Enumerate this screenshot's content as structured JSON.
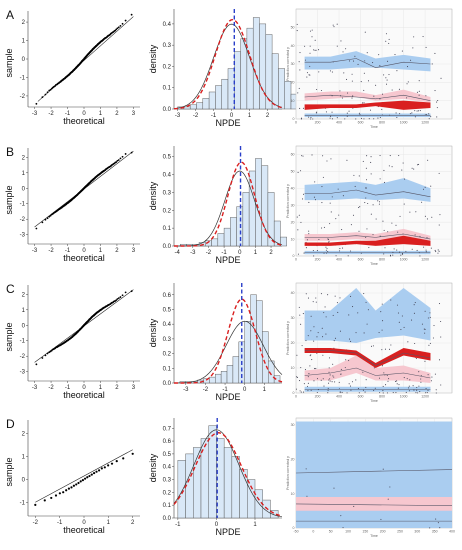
{
  "panels": [
    {
      "label": "A",
      "qq": {
        "xlabel": "theoretical",
        "ylabel": "sample",
        "xticks": [
          "-3",
          "-2",
          "-1",
          "0",
          "1",
          "2",
          "3"
        ],
        "yticks": [
          "-2",
          "-1",
          "0",
          "1",
          "2"
        ],
        "xlim": [
          -3.4,
          3.4
        ],
        "ylim": [
          -2.6,
          2.6
        ],
        "line": [
          [
            -2.8,
            -2.3
          ],
          [
            3.0,
            2.3
          ]
        ],
        "points": {
          "n": 260,
          "lo": -2.7,
          "hi": 2.4,
          "slope": 0.85,
          "wave": 0.08
        }
      },
      "hist": {
        "xlabel": "NPDE",
        "ylabel": "density",
        "xticks": [
          "-3",
          "-2",
          "-1",
          "0",
          "1",
          "2"
        ],
        "yticks": [
          "0.0",
          "0.1",
          "0.2",
          "0.3",
          "0.4"
        ],
        "xlim": [
          -3.2,
          2.8
        ],
        "ylim": [
          0,
          0.47
        ],
        "bins": {
          "start": -3.0,
          "width": 0.35,
          "values": [
            0.01,
            0.01,
            0.02,
            0.03,
            0.05,
            0.08,
            0.11,
            0.14,
            0.19,
            0.27,
            0.33,
            0.38,
            0.43,
            0.4,
            0.35,
            0.26,
            0.19,
            0.13,
            0.07,
            0.03
          ]
        },
        "normal": {
          "mean": 0.0,
          "sd": 1.0
        },
        "fit": {
          "mean": 0.05,
          "sd": 0.95
        },
        "mean_line": 0.15
      },
      "vpc": {
        "xlabel": "Time",
        "ylabel": "Prediction corrected y",
        "xticks": [
          "0",
          "200",
          "400",
          "600",
          "800",
          "1000",
          "1200"
        ],
        "yticks": [
          "0",
          "10",
          "20",
          "30",
          "40",
          "50"
        ],
        "xlim": [
          0,
          1450
        ],
        "ylim": [
          0,
          60
        ],
        "bins": [
          80,
          320,
          560,
          740,
          1000,
          1250
        ],
        "upper_band": [
          [
            27,
            34
          ],
          [
            27,
            34
          ],
          [
            28,
            37
          ],
          [
            28,
            33
          ],
          [
            27,
            35
          ],
          [
            26,
            33
          ]
        ],
        "upper_obs": [
          31,
          31,
          33,
          28,
          31,
          30
        ],
        "median_band": [
          [
            10,
            14
          ],
          [
            11,
            15
          ],
          [
            12,
            15
          ],
          [
            10,
            13
          ],
          [
            11,
            16
          ],
          [
            9,
            12
          ]
        ],
        "median_obs": [
          12,
          13,
          12,
          11,
          13,
          10
        ],
        "lower_band": [
          [
            1,
            3
          ],
          [
            1,
            3
          ],
          [
            1,
            3
          ],
          [
            1,
            3
          ],
          [
            1,
            3
          ],
          [
            1,
            3
          ]
        ],
        "lower_obs": [
          2,
          2,
          2,
          2,
          2,
          2
        ],
        "red_fill": [
          [
            5,
            8
          ],
          [
            6,
            8
          ],
          [
            6,
            8
          ],
          [
            7,
            9
          ],
          [
            5,
            10
          ],
          [
            6,
            9
          ]
        ],
        "scatter": {
          "n": 160,
          "max": 52
        }
      }
    },
    {
      "label": "B",
      "qq": {
        "xlabel": "theoretical",
        "ylabel": "sample",
        "xticks": [
          "-3",
          "-2",
          "-1",
          "0",
          "1",
          "2",
          "3"
        ],
        "yticks": [
          "-3",
          "-2",
          "-1",
          "0",
          "1",
          "2"
        ],
        "xlim": [
          -3.4,
          3.4
        ],
        "ylim": [
          -3.6,
          2.6
        ],
        "line": [
          [
            -3.0,
            -2.5
          ],
          [
            3.0,
            2.4
          ]
        ],
        "points": {
          "n": 260,
          "lo": -3.2,
          "hi": 2.3,
          "slope": 0.9,
          "wave": 0.07
        }
      },
      "hist": {
        "xlabel": "NPDE",
        "ylabel": "density",
        "xticks": [
          "-4",
          "-3",
          "-2",
          "-1",
          "0",
          "1",
          "2"
        ],
        "yticks": [
          "0.0",
          "0.1",
          "0.2",
          "0.3",
          "0.4",
          "0.5"
        ],
        "xlim": [
          -4.2,
          2.7
        ],
        "ylim": [
          0,
          0.56
        ],
        "bins": {
          "start": -3.8,
          "width": 0.4,
          "values": [
            0.01,
            0.01,
            0.01,
            0.02,
            0.03,
            0.04,
            0.07,
            0.1,
            0.16,
            0.22,
            0.3,
            0.42,
            0.49,
            0.45,
            0.3,
            0.14,
            0.05
          ]
        },
        "normal": {
          "mean": 0.0,
          "sd": 0.95
        },
        "fit": {
          "mean": 0.1,
          "sd": 0.85
        },
        "mean_line": 0.05
      },
      "vpc": {
        "xlabel": "Time",
        "ylabel": "Prediction corrected y",
        "xticks": [
          "0",
          "200",
          "400",
          "600",
          "800",
          "1000",
          "1200"
        ],
        "yticks": [
          "0",
          "10",
          "20",
          "30",
          "40",
          "50",
          "60"
        ],
        "xlim": [
          0,
          1450
        ],
        "ylim": [
          0,
          65
        ],
        "bins": [
          80,
          320,
          560,
          740,
          1000,
          1250
        ],
        "upper_band": [
          [
            33,
            42
          ],
          [
            33,
            43
          ],
          [
            34,
            44
          ],
          [
            33,
            42
          ],
          [
            34,
            46
          ],
          [
            32,
            40
          ]
        ],
        "upper_obs": [
          37,
          37,
          39,
          36,
          38,
          35
        ],
        "median_band": [
          [
            9,
            13
          ],
          [
            9,
            13
          ],
          [
            10,
            14
          ],
          [
            9,
            13
          ],
          [
            10,
            16
          ],
          [
            8,
            12
          ]
        ],
        "median_obs": [
          11,
          11,
          12,
          11,
          13,
          10
        ],
        "lower_band": [
          [
            1,
            3
          ],
          [
            1,
            3
          ],
          [
            1,
            3
          ],
          [
            1,
            3
          ],
          [
            1,
            3
          ],
          [
            1,
            3
          ]
        ],
        "lower_obs": [
          2,
          2,
          2,
          2,
          2,
          2
        ],
        "red_fill": [
          [
            6,
            8
          ],
          [
            6,
            8
          ],
          [
            7,
            9
          ],
          [
            6,
            9
          ],
          [
            7,
            12
          ],
          [
            6,
            9
          ]
        ],
        "scatter": {
          "n": 170,
          "max": 60
        }
      }
    },
    {
      "label": "C",
      "qq": {
        "xlabel": "theoretical",
        "ylabel": "sample",
        "xticks": [
          "-3",
          "-2",
          "-1",
          "0",
          "1",
          "2",
          "3"
        ],
        "yticks": [
          "-3",
          "-2",
          "-1",
          "0",
          "1",
          "2"
        ],
        "xlim": [
          -3.4,
          3.4
        ],
        "ylim": [
          -3.6,
          2.6
        ],
        "line": [
          [
            -3.0,
            -2.4
          ],
          [
            3.0,
            2.3
          ]
        ],
        "points": {
          "n": 260,
          "lo": -3.1,
          "hi": 2.2,
          "slope": 0.88,
          "wave": 0.12
        }
      },
      "hist": {
        "xlabel": "NPDE",
        "ylabel": "density",
        "xticks": [
          "-3",
          "-2",
          "-1",
          "0",
          "1"
        ],
        "yticks": [
          "0.0",
          "0.1",
          "0.2",
          "0.3",
          "0.4",
          "0.5",
          "0.6"
        ],
        "xlim": [
          -3.6,
          1.9
        ],
        "ylim": [
          0,
          0.68
        ],
        "bins": {
          "start": -3.3,
          "width": 0.3,
          "values": [
            0.01,
            0.01,
            0.01,
            0.02,
            0.03,
            0.04,
            0.06,
            0.08,
            0.12,
            0.18,
            0.28,
            0.42,
            0.6,
            0.56,
            0.35,
            0.15,
            0.05
          ]
        },
        "normal": {
          "mean": 0.0,
          "sd": 0.95
        },
        "fit": {
          "mean": -0.15,
          "sd": 0.7
        },
        "mean_line": -0.15
      },
      "vpc": {
        "xlabel": "Time",
        "ylabel": "Prediction corrected y",
        "xticks": [
          "0",
          "200",
          "400",
          "600",
          "800",
          "1000",
          "1200"
        ],
        "yticks": [
          "0",
          "10",
          "20",
          "30",
          "40"
        ],
        "xlim": [
          0,
          1450
        ],
        "ylim": [
          0,
          44
        ],
        "bins": [
          80,
          320,
          560,
          740,
          1000,
          1250
        ],
        "upper_band": [
          [
            21,
            33
          ],
          [
            21,
            33
          ],
          [
            20,
            42
          ],
          [
            22,
            33
          ],
          [
            23,
            42
          ],
          [
            21,
            34
          ]
        ],
        "upper_obs": [
          17,
          17,
          16,
          11,
          16,
          14
        ],
        "median_band": [
          [
            5,
            9
          ],
          [
            5,
            10
          ],
          [
            8,
            15
          ],
          [
            5,
            10
          ],
          [
            5,
            11
          ],
          [
            4,
            8
          ]
        ],
        "median_obs": [
          7,
          8,
          10,
          7,
          8,
          6
        ],
        "lower_band": [
          [
            0.5,
            2.5
          ],
          [
            0.5,
            2.5
          ],
          [
            0.5,
            2.5
          ],
          [
            0.5,
            2.5
          ],
          [
            0.5,
            2.5
          ],
          [
            0.5,
            2.5
          ]
        ],
        "lower_obs": [
          1.5,
          1.5,
          1.5,
          1.5,
          1.5,
          1.5
        ],
        "red_fill": [
          [
            16,
            18
          ],
          [
            16,
            18
          ],
          [
            15,
            17
          ],
          [
            10,
            12
          ],
          [
            15,
            18
          ],
          [
            13,
            16
          ]
        ],
        "scatter": {
          "n": 220,
          "max": 40
        }
      }
    },
    {
      "label": "D",
      "qq": {
        "xlabel": "theoretical",
        "ylabel": "sample",
        "xticks": [
          "-2",
          "-1",
          "0",
          "1",
          "2"
        ],
        "yticks": [
          "-1",
          "0",
          "1",
          "2"
        ],
        "xlim": [
          -2.3,
          2.3
        ],
        "ylim": [
          -1.6,
          2.6
        ],
        "line": [
          [
            -2.0,
            -1.0
          ],
          [
            2.0,
            1.3
          ]
        ],
        "points": {
          "n": 28,
          "lo": -1.9,
          "hi": 1.9,
          "slope": 0.58,
          "wave": 0.05
        }
      },
      "hist": {
        "xlabel": "NPDE",
        "ylabel": "density",
        "xticks": [
          "-1",
          "0",
          "1"
        ],
        "yticks": [
          "0.0",
          "0.1",
          "0.2",
          "0.3",
          "0.4",
          "0.5",
          "0.6",
          "0.7"
        ],
        "xlim": [
          -1.1,
          1.7
        ],
        "ylim": [
          0,
          0.78
        ],
        "bins": {
          "start": -1.0,
          "width": 0.2,
          "values": [
            0.45,
            0.5,
            0.55,
            0.62,
            0.72,
            0.62,
            0.55,
            0.48,
            0.38,
            0.3,
            0.22,
            0.14,
            0.06
          ]
        },
        "normal": {
          "mean": 0.0,
          "sd": 0.58
        },
        "fit": {
          "mean": 0.05,
          "sd": 0.6
        },
        "mean_line": 0.02
      },
      "vpc": {
        "xlabel": "Time",
        "ylabel": "Prediction corrected y",
        "xticks": [
          "-50",
          "0",
          "50",
          "100",
          "150",
          "200",
          "250",
          "300",
          "350",
          "400"
        ],
        "yticks": [
          "0",
          "10",
          "20",
          "30"
        ],
        "xlim": [
          -50,
          400
        ],
        "ylim": [
          0,
          32
        ],
        "bins": [
          -50,
          400
        ],
        "upper_band": [
          [
            0,
            31
          ],
          [
            0,
            31
          ]
        ],
        "upper_obs": [
          16,
          17
        ],
        "median_band": [
          [
            5,
            9
          ],
          [
            5,
            9
          ]
        ],
        "median_obs": [
          7,
          6.5
        ],
        "lower_band": [
          [
            0,
            2
          ],
          [
            0,
            2
          ]
        ],
        "lower_obs": [
          2,
          2
        ],
        "red_fill": [],
        "scatter": {
          "n": 14,
          "max": 18
        }
      }
    }
  ],
  "colors": {
    "blue_band": "#aacdf0",
    "pink_band": "#f6c7cf",
    "hist_fill": "#d9e8f7",
    "hist_edge": "#555555",
    "red": "#d91f1f",
    "blue_line": "#2a3fc9",
    "obs_line": "#555566"
  }
}
